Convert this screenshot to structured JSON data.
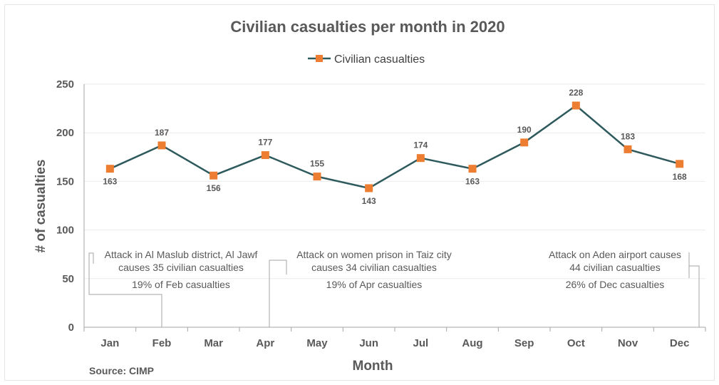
{
  "colors": {
    "line": "#2e5a5d",
    "marker": "#ed7d31",
    "grid": "#ebebeb",
    "axis": "#a6a6a6",
    "text": "#595959"
  },
  "chart_data": {
    "type": "line",
    "title": "Civilian casualties per month in 2020",
    "xlabel": "Month",
    "ylabel": "# of casualties",
    "categories": [
      "Jan",
      "Feb",
      "Mar",
      "Apr",
      "May",
      "Jun",
      "Jul",
      "Aug",
      "Sep",
      "Oct",
      "Nov",
      "Dec"
    ],
    "series": [
      {
        "name": "Civilian casualties",
        "values": [
          163,
          187,
          156,
          177,
          155,
          143,
          174,
          163,
          190,
          228,
          183,
          168
        ]
      }
    ],
    "ylim": [
      0,
      250
    ],
    "yticks": [
      "0",
      "50",
      "100",
      "150",
      "200",
      "250"
    ],
    "grid": true,
    "legend": "top-center",
    "annotations": [
      {
        "month": "Feb",
        "line1": "Attack in Al Maslub district, Al Jawf",
        "line2": "causes 35 civilian casualties",
        "share": "19% of Feb casualties"
      },
      {
        "month": "Apr",
        "line1": "Attack on women prison in Taiz city",
        "line2": "causes 34 civilian casualties",
        "share": "19% of Apr casualties"
      },
      {
        "month": "Dec",
        "line1": "Attack on Aden airport causes",
        "line2": "44 civilian casualties",
        "share": "26% of Dec casualties"
      }
    ],
    "source": "Source: CIMP"
  }
}
